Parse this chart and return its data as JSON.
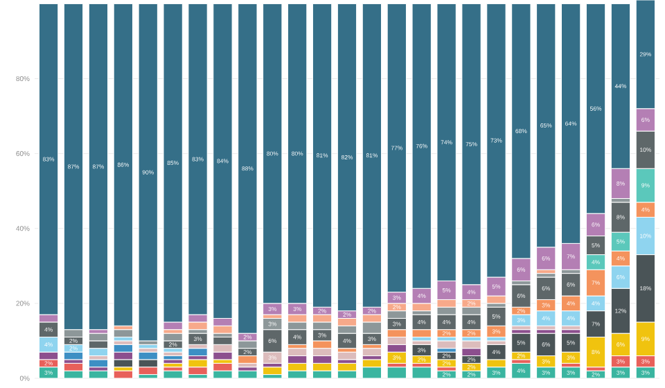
{
  "chart_data": {
    "type": "bar",
    "stacked": true,
    "grid": "y",
    "categories": [
      null,
      null,
      null,
      null,
      null,
      null,
      null,
      null,
      null,
      null,
      null,
      null,
      null,
      null,
      null,
      null,
      null,
      null,
      null,
      null,
      null,
      null,
      null,
      null,
      null
    ],
    "ylim": [
      0,
      101
    ],
    "yticks": [
      {
        "value": 0,
        "label": "0%"
      },
      {
        "value": 20,
        "label": "20%"
      },
      {
        "value": 40,
        "label": "40%"
      },
      {
        "value": 60,
        "label": "60%"
      },
      {
        "value": 80,
        "label": "80%"
      }
    ],
    "series": [
      {
        "color": "#3ab5a0",
        "values": [
          3,
          2,
          2,
          null,
          1,
          2,
          1,
          2,
          2,
          1,
          2,
          2,
          2,
          3,
          3,
          3,
          2,
          2,
          3,
          4,
          3,
          3,
          2,
          3,
          3
        ],
        "value_labels": [
          "3%",
          null,
          null,
          null,
          null,
          null,
          null,
          null,
          null,
          null,
          null,
          null,
          null,
          null,
          null,
          null,
          "2%",
          "2%",
          "3%",
          "4%",
          "3%",
          "3%",
          "2%",
          "3%",
          "3%"
        ]
      },
      {
        "color": "#e8605a",
        "values": [
          2,
          2,
          null,
          2,
          2,
          1,
          2,
          2,
          null,
          null,
          null,
          null,
          null,
          null,
          1,
          1,
          1,
          null,
          null,
          1,
          null,
          1,
          1,
          3,
          3
        ],
        "value_labels": [
          "2%",
          null,
          null,
          null,
          null,
          null,
          null,
          null,
          null,
          null,
          null,
          null,
          null,
          null,
          null,
          null,
          null,
          null,
          null,
          null,
          null,
          null,
          null,
          "3%",
          "3%"
        ]
      },
      {
        "color": "#f0c30f",
        "values": [
          null,
          null,
          null,
          1,
          null,
          1,
          2,
          1,
          null,
          2,
          2,
          2,
          2,
          2,
          3,
          2,
          2,
          2,
          2,
          2,
          3,
          3,
          8,
          6,
          9
        ],
        "value_labels": [
          null,
          null,
          null,
          null,
          null,
          null,
          null,
          null,
          null,
          null,
          null,
          null,
          null,
          null,
          "3%",
          "2%",
          "2%",
          "2%",
          null,
          "2%",
          "3%",
          "3%",
          "8%",
          "6%",
          "9%"
        ]
      },
      {
        "color": "#4a5457",
        "values": [
          null,
          null,
          null,
          2,
          2,
          null,
          null,
          null,
          null,
          null,
          null,
          null,
          null,
          null,
          null,
          3,
          2,
          2,
          4,
          5,
          6,
          5,
          7,
          12,
          18
        ],
        "value_labels": [
          null,
          null,
          null,
          null,
          null,
          null,
          null,
          null,
          null,
          null,
          null,
          null,
          null,
          null,
          null,
          "3%",
          "2%",
          "2%",
          "4%",
          "5%",
          "6%",
          "5%",
          "7%",
          "12%",
          "18%"
        ]
      },
      {
        "color": "#8c4f8e",
        "values": [
          2,
          1,
          1,
          2,
          null,
          1,
          1,
          2,
          1,
          1,
          2,
          2,
          1,
          1,
          2,
          null,
          null,
          2,
          null,
          1,
          1,
          1,
          null,
          null,
          null
        ]
      },
      {
        "color": "#3d8fc4",
        "values": [
          null,
          2,
          2,
          2,
          2,
          1,
          2,
          null,
          null,
          null,
          null,
          null,
          null,
          null,
          null,
          null,
          1,
          null,
          null,
          null,
          null,
          null,
          null,
          null,
          null
        ]
      },
      {
        "color": "#dcbcbc",
        "values": [
          null,
          null,
          1,
          1,
          1,
          1,
          1,
          2,
          1,
          3,
          2,
          2,
          2,
          2,
          2,
          1,
          2,
          2,
          1,
          1,
          1,
          1,
          null,
          null,
          null
        ],
        "value_labels": [
          null,
          null,
          null,
          null,
          null,
          null,
          null,
          null,
          null,
          "3%",
          null,
          null,
          null,
          null,
          null,
          null,
          null,
          null,
          null,
          null,
          null,
          null,
          null,
          null,
          null
        ]
      },
      {
        "color": "#8fd4ef",
        "values": [
          4,
          2,
          2,
          1,
          1,
          1,
          null,
          null,
          null,
          null,
          null,
          null,
          null,
          null,
          null,
          1,
          1,
          1,
          1,
          3,
          4,
          4,
          4,
          6,
          10
        ],
        "value_labels": [
          "4%",
          "2%",
          null,
          null,
          null,
          null,
          null,
          null,
          null,
          null,
          null,
          null,
          null,
          null,
          null,
          null,
          null,
          null,
          null,
          "3%",
          "4%",
          "4%",
          "4%",
          "6%",
          "10%"
        ]
      },
      {
        "color": "#f4935d",
        "values": [
          null,
          null,
          null,
          null,
          null,
          null,
          null,
          null,
          2,
          null,
          1,
          2,
          1,
          1,
          2,
          2,
          2,
          2,
          3,
          2,
          3,
          4,
          7,
          4,
          4
        ],
        "value_labels": [
          null,
          null,
          null,
          null,
          null,
          null,
          null,
          null,
          null,
          null,
          null,
          null,
          null,
          null,
          null,
          null,
          "2%",
          "2%",
          "3%",
          "2%",
          "3%",
          "4%",
          "7%",
          "4%",
          "4%"
        ]
      },
      {
        "color": "#5bc8bb",
        "values": [
          null,
          null,
          null,
          null,
          null,
          null,
          null,
          null,
          null,
          null,
          null,
          null,
          null,
          null,
          null,
          null,
          null,
          null,
          null,
          null,
          null,
          null,
          4,
          5,
          9
        ],
        "value_labels": [
          null,
          null,
          null,
          null,
          null,
          null,
          null,
          null,
          null,
          null,
          null,
          null,
          null,
          null,
          null,
          null,
          null,
          null,
          null,
          null,
          null,
          null,
          "4%",
          "5%",
          "9%"
        ]
      },
      {
        "color": "#5e6769",
        "values": [
          4,
          2,
          2,
          null,
          null,
          2,
          3,
          2,
          2,
          6,
          4,
          3,
          4,
          3,
          3,
          4,
          4,
          4,
          5,
          6,
          6,
          6,
          5,
          8,
          10
        ],
        "value_labels": [
          "4%",
          "2%",
          null,
          null,
          null,
          "2%",
          "3%",
          null,
          "2%",
          "6%",
          "4%",
          "3%",
          "4%",
          "3%",
          "3%",
          "4%",
          "4%",
          "4%",
          "5%",
          "6%",
          "6%",
          "6%",
          "5%",
          "8%",
          "10%"
        ]
      },
      {
        "color": "#8d9799",
        "values": [
          null,
          2,
          2,
          2,
          1,
          2,
          1,
          1,
          2,
          3,
          2,
          2,
          2,
          3,
          2,
          1,
          2,
          2,
          1,
          1,
          1,
          1,
          null,
          1,
          null
        ],
        "value_labels": [
          null,
          null,
          null,
          null,
          null,
          null,
          null,
          null,
          null,
          "3%",
          null,
          null,
          null,
          null,
          null,
          null,
          null,
          null,
          null,
          null,
          null,
          null,
          null,
          null,
          null
        ]
      },
      {
        "color": "#f7a98a",
        "values": [
          null,
          null,
          null,
          1,
          null,
          1,
          2,
          2,
          null,
          1,
          2,
          2,
          2,
          2,
          2,
          2,
          2,
          2,
          2,
          null,
          1,
          null,
          null,
          null,
          null
        ],
        "value_labels": [
          null,
          null,
          null,
          null,
          null,
          null,
          null,
          null,
          null,
          null,
          null,
          null,
          null,
          null,
          "2%",
          null,
          null,
          "2%",
          null,
          null,
          null,
          null,
          null,
          null,
          null
        ]
      },
      {
        "color": "#b47fb4",
        "values": [
          2,
          null,
          1,
          null,
          null,
          2,
          2,
          2,
          2,
          3,
          3,
          2,
          2,
          2,
          3,
          4,
          5,
          4,
          5,
          6,
          6,
          7,
          6,
          8,
          6
        ],
        "value_labels": [
          null,
          null,
          null,
          null,
          null,
          null,
          null,
          null,
          "2%",
          "3%",
          "3%",
          "2%",
          "2%",
          "2%",
          "3%",
          "4%",
          "5%",
          "4%",
          "5%",
          "6%",
          "6%",
          "7%",
          "6%",
          "8%",
          "6%"
        ]
      },
      {
        "color": "#356f88",
        "values": [
          83,
          87,
          87,
          86,
          90,
          85,
          83,
          84,
          88,
          80,
          80,
          81,
          82,
          81,
          77,
          76,
          74,
          75,
          73,
          68,
          65,
          64,
          56,
          44,
          29
        ],
        "value_labels": [
          "83%",
          "87%",
          "87%",
          "86%",
          "90%",
          "85%",
          "83%",
          "84%",
          "88%",
          "80%",
          "80%",
          "81%",
          "82%",
          "81%",
          "77%",
          "76%",
          "74%",
          "75%",
          "73%",
          "68%",
          "65%",
          "64%",
          "56%",
          "44%",
          "29%"
        ]
      }
    ]
  }
}
